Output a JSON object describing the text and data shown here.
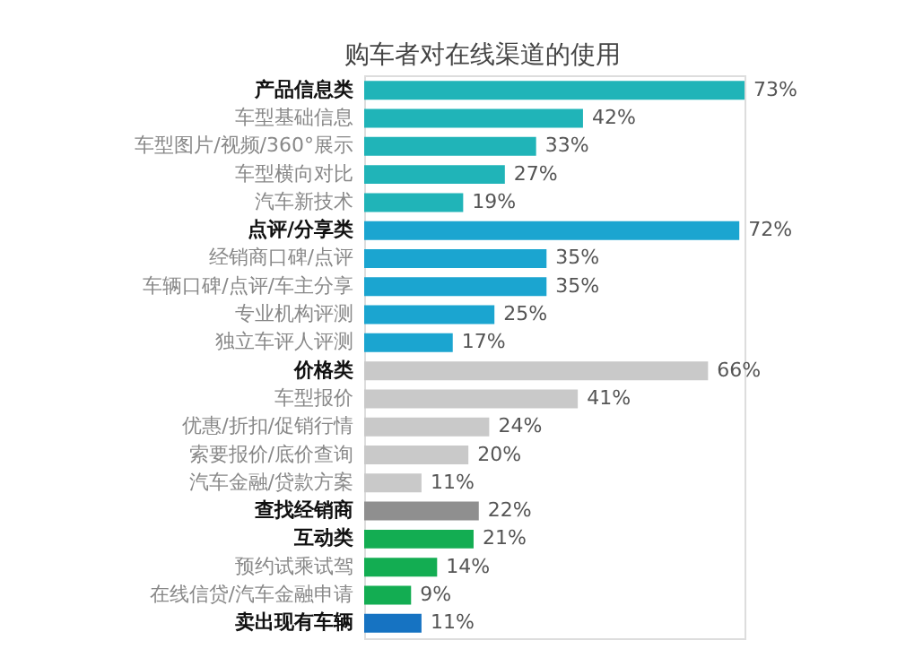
{
  "chart_data": {
    "type": "bar",
    "orientation": "horizontal",
    "title": "购车者对在线渠道的使用",
    "categories": [
      "产品信息类",
      "车型基础信息",
      "车型图片/视频/360°展示",
      "车型横向对比",
      "汽车新技术",
      "点评/分享类",
      "经销商口碑/点评",
      "车辆口碑/点评/车主分享",
      "专业机构评测",
      "独立车评人评测",
      "价格类",
      "车型报价",
      "优惠/折扣/促销行情",
      "索要报价/底价查询",
      "汽车金融/贷款方案",
      "查找经销商",
      "互动类",
      "预约试乘试驾",
      "在线信贷/汽车金融申请",
      "卖出现有车辆"
    ],
    "values": [
      73,
      42,
      33,
      27,
      19,
      72,
      35,
      35,
      25,
      17,
      66,
      41,
      24,
      20,
      11,
      22,
      21,
      14,
      9,
      11
    ],
    "value_labels": [
      "73%",
      "42%",
      "33%",
      "27%",
      "19%",
      "72%",
      "35%",
      "35%",
      "25%",
      "17%",
      "66%",
      "41%",
      "24%",
      "20%",
      "11%",
      "22%",
      "21%",
      "14%",
      "9%",
      "11%"
    ],
    "colors": [
      "#20b4b8",
      "#20b4b8",
      "#20b4b8",
      "#20b4b8",
      "#20b4b8",
      "#1ba5d0",
      "#1ba5d0",
      "#1ba5d0",
      "#1ba5d0",
      "#1ba5d0",
      "#c9c9c9",
      "#c9c9c9",
      "#c9c9c9",
      "#c9c9c9",
      "#c9c9c9",
      "#8f8f8f",
      "#13ad52",
      "#13ad52",
      "#13ad52",
      "#1673c2"
    ]
  }
}
